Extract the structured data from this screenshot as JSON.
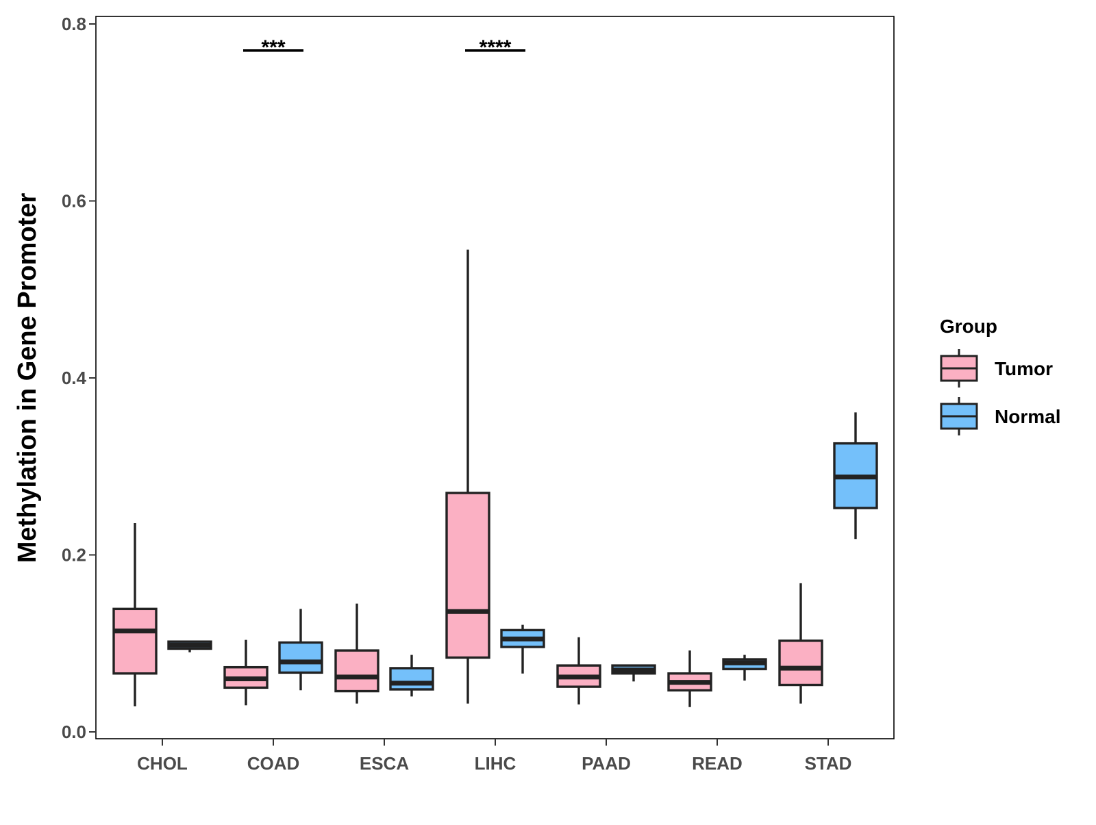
{
  "chart_data": {
    "type": "boxplot",
    "title": "",
    "xlabel": "",
    "ylabel": "Methylation in Gene Promoter",
    "ylim": [
      0,
      0.8
    ],
    "yticks": [
      "0.0",
      "0.2",
      "0.4",
      "0.6",
      "0.8"
    ],
    "categories": [
      "CHOL",
      "COAD",
      "ESCA",
      "LIHC",
      "PAAD",
      "READ",
      "STAD"
    ],
    "series": [
      {
        "name": "Tumor",
        "color": "#FBB0C3",
        "boxes": [
          {
            "min": 0.029,
            "q1": 0.066,
            "median": 0.114,
            "q3": 0.139,
            "max": 0.236
          },
          {
            "min": 0.03,
            "q1": 0.05,
            "median": 0.06,
            "q3": 0.073,
            "max": 0.104
          },
          {
            "min": 0.032,
            "q1": 0.046,
            "median": 0.062,
            "q3": 0.092,
            "max": 0.145
          },
          {
            "min": 0.032,
            "q1": 0.084,
            "median": 0.136,
            "q3": 0.27,
            "max": 0.545
          },
          {
            "min": 0.031,
            "q1": 0.051,
            "median": 0.062,
            "q3": 0.075,
            "max": 0.107
          },
          {
            "min": 0.028,
            "q1": 0.047,
            "median": 0.056,
            "q3": 0.066,
            "max": 0.092
          },
          {
            "min": 0.032,
            "q1": 0.053,
            "median": 0.072,
            "q3": 0.103,
            "max": 0.168
          }
        ]
      },
      {
        "name": "Normal",
        "color": "#74C0FA",
        "boxes": [
          {
            "min": 0.09,
            "q1": 0.094,
            "median": 0.098,
            "q3": 0.102,
            "max": 0.102
          },
          {
            "min": 0.047,
            "q1": 0.067,
            "median": 0.079,
            "q3": 0.101,
            "max": 0.139
          },
          {
            "min": 0.04,
            "q1": 0.048,
            "median": 0.055,
            "q3": 0.072,
            "max": 0.087
          },
          {
            "min": 0.066,
            "q1": 0.096,
            "median": 0.105,
            "q3": 0.115,
            "max": 0.121
          },
          {
            "min": 0.057,
            "q1": 0.066,
            "median": 0.07,
            "q3": 0.075,
            "max": 0.075
          },
          {
            "min": 0.058,
            "q1": 0.071,
            "median": 0.078,
            "q3": 0.082,
            "max": 0.087
          },
          {
            "min": 0.218,
            "q1": 0.253,
            "median": 0.288,
            "q3": 0.326,
            "max": 0.361
          }
        ]
      }
    ],
    "significance": [
      {
        "category": "COAD",
        "label": "***",
        "y": 0.77
      },
      {
        "category": "LIHC",
        "label": "****",
        "y": 0.77
      }
    ],
    "legend": {
      "title": "Group",
      "position": "right",
      "items": [
        "Tumor",
        "Normal"
      ]
    },
    "grid": false
  }
}
